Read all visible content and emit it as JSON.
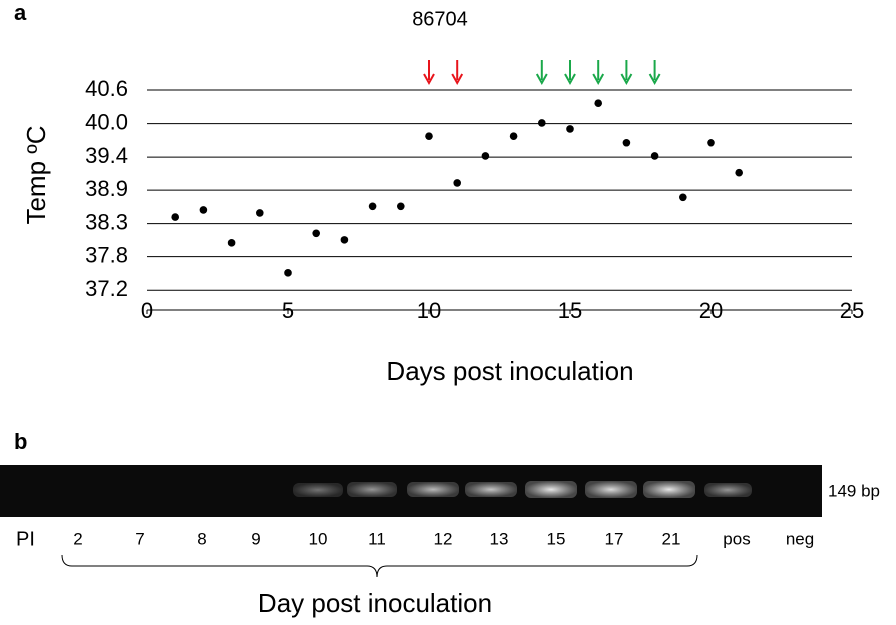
{
  "chart_data": {
    "type": "scatter",
    "title": "86704",
    "panel_label": "a",
    "x_label": "Days post inoculation",
    "y_label": "Temp ºC",
    "x": [
      1,
      2,
      3,
      4,
      5,
      6,
      7,
      8,
      9,
      10,
      11,
      12,
      13,
      14,
      15,
      16,
      17,
      18,
      19,
      20,
      21
    ],
    "values": [
      38.44,
      38.56,
      38.01,
      38.51,
      37.51,
      38.17,
      38.06,
      38.62,
      38.62,
      39.79,
      39.01,
      39.46,
      39.79,
      40.01,
      39.91,
      40.34,
      39.68,
      39.46,
      38.77,
      39.68,
      39.18
    ],
    "color": "#000000",
    "xlim": [
      0,
      25
    ],
    "xticks": [
      0,
      5,
      10,
      15,
      20,
      25
    ],
    "ylim": [
      36.89,
      40.56
    ],
    "yticks": [
      {
        "value": 37.22,
        "label": "37.2"
      },
      {
        "value": 37.78,
        "label": "37.8"
      },
      {
        "value": 38.33,
        "label": "38.3"
      },
      {
        "value": 38.89,
        "label": "38.9"
      },
      {
        "value": 39.44,
        "label": "39.4"
      },
      {
        "value": 40.0,
        "label": "40.0"
      },
      {
        "value": 40.56,
        "label": "40.6"
      }
    ],
    "grid": true,
    "arrows": [
      {
        "x": 10,
        "color": "#e8141b"
      },
      {
        "x": 11,
        "color": "#e8141b"
      },
      {
        "x": 14,
        "color": "#1aa84a"
      },
      {
        "x": 15,
        "color": "#1aa84a"
      },
      {
        "x": 16,
        "color": "#1aa84a"
      },
      {
        "x": 17,
        "color": "#1aa84a"
      },
      {
        "x": 18,
        "color": "#1aa84a"
      }
    ]
  },
  "gel": {
    "panel_label": "b",
    "row_label": "PI",
    "band_size": "149 bp",
    "lanes": [
      "2",
      "7",
      "8",
      "9",
      "10",
      "11",
      "12",
      "13",
      "15",
      "17",
      "21",
      "pos",
      "neg"
    ],
    "bracket_label": "Day post inoculation"
  }
}
